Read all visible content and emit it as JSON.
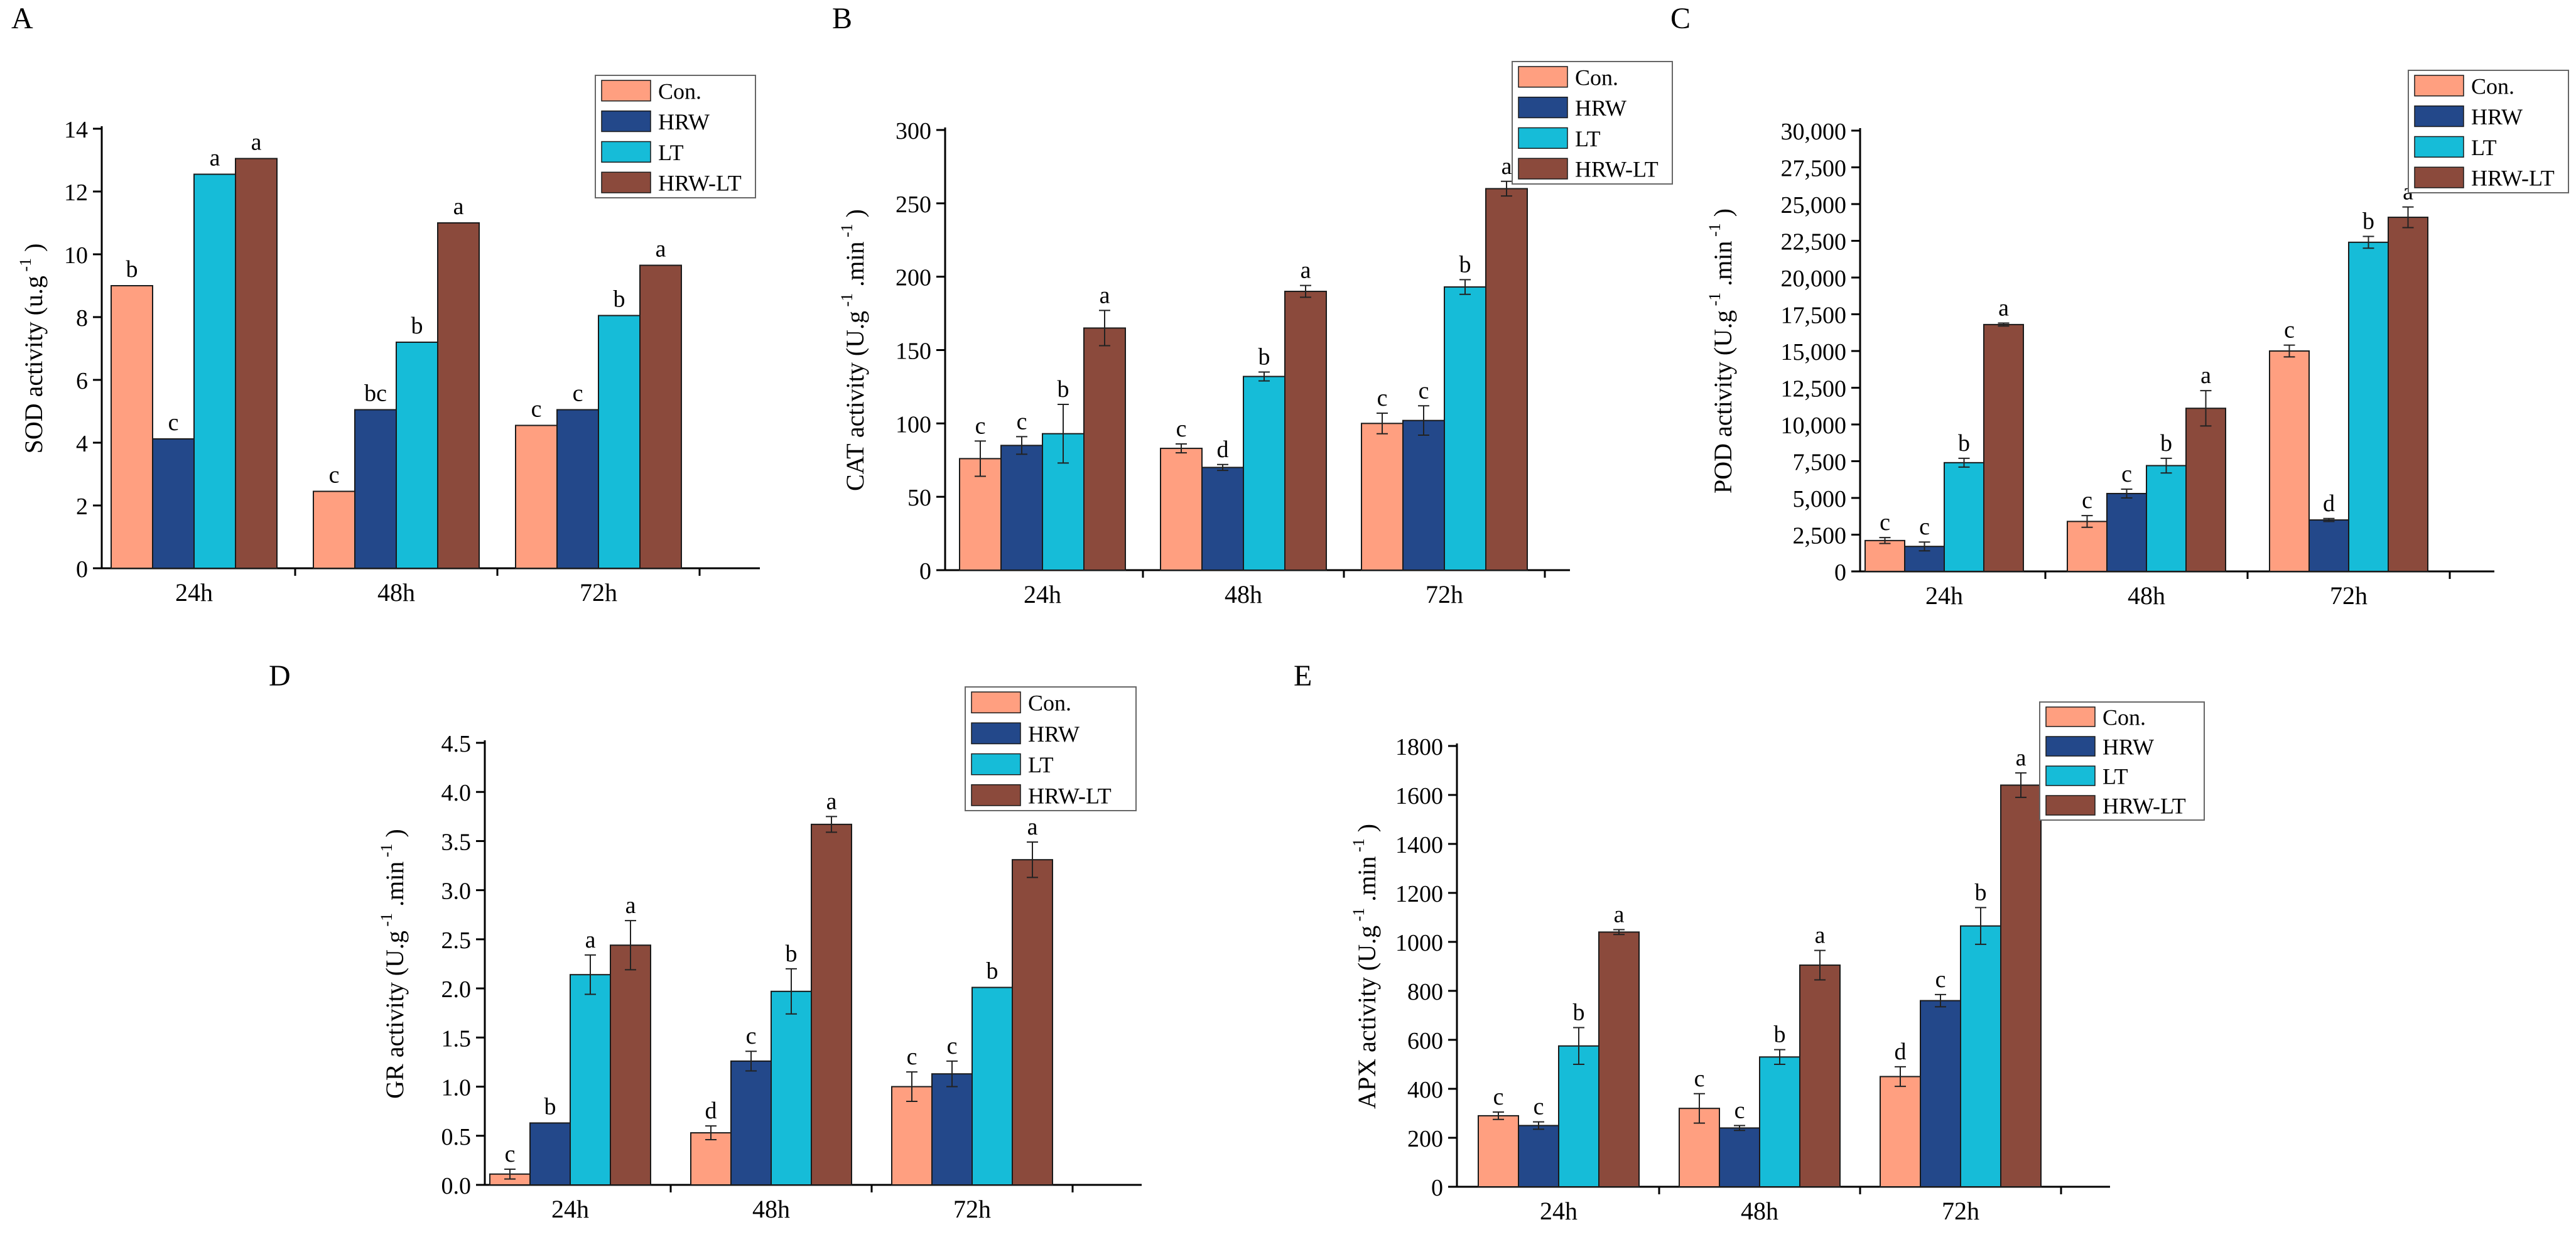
{
  "colors": {
    "Con.": "#ff9f80",
    "HRW": "#23488a",
    "LT": "#16bcd8",
    "HRW-LT": "#8b4a3c",
    "axis": "#000000",
    "error": "#222222"
  },
  "chart_data": [
    {
      "panel": "A",
      "type": "bar",
      "ylabel": "SOD activity (u.g",
      "ylabel_sup": "-1",
      "ylabel_end": ")",
      "ylim": [
        0,
        14
      ],
      "ytick_values": [
        0,
        2,
        4,
        6,
        8,
        10,
        12,
        14
      ],
      "ytick_labels": [
        "0",
        "2",
        "4",
        "6",
        "8",
        "10",
        "12",
        "14"
      ],
      "categories": [
        "24h",
        "48h",
        "72h"
      ],
      "legend_position": "top-right",
      "series": [
        {
          "name": "Con.",
          "values": [
            9.0,
            2.45,
            4.55
          ],
          "errors": [
            0,
            0,
            0
          ],
          "letters": [
            "b",
            "c",
            "c"
          ]
        },
        {
          "name": "HRW",
          "values": [
            4.12,
            5.05,
            5.05
          ],
          "errors": [
            0,
            0,
            0
          ],
          "letters": [
            "c",
            "bc",
            "c"
          ]
        },
        {
          "name": "LT",
          "values": [
            12.55,
            7.2,
            8.05
          ],
          "errors": [
            0,
            0,
            0
          ],
          "letters": [
            "a",
            "b",
            "b"
          ]
        },
        {
          "name": "HRW-LT",
          "values": [
            13.05,
            11.0,
            9.65
          ],
          "errors": [
            0,
            0,
            0
          ],
          "letters": [
            "a",
            "a",
            "a"
          ]
        }
      ]
    },
    {
      "panel": "B",
      "type": "bar",
      "ylabel": "CAT activity (U.g",
      "ylabel_sup": "-1",
      "ylabel_mid": ".min",
      "ylabel_sup2": "-1",
      "ylabel_end": ")",
      "ylim": [
        0,
        300
      ],
      "ytick_values": [
        0,
        50,
        100,
        150,
        200,
        250,
        300
      ],
      "ytick_labels": [
        "0",
        "50",
        "100",
        "150",
        "200",
        "250",
        "300"
      ],
      "categories": [
        "24h",
        "48h",
        "72h"
      ],
      "legend_position": "top-right",
      "series": [
        {
          "name": "Con.",
          "values": [
            76,
            83,
            100
          ],
          "errors": [
            12,
            3,
            7
          ],
          "letters": [
            "c",
            "c",
            "c"
          ]
        },
        {
          "name": "HRW",
          "values": [
            85,
            70,
            102
          ],
          "errors": [
            6,
            2,
            10
          ],
          "letters": [
            "c",
            "d",
            "c"
          ]
        },
        {
          "name": "LT",
          "values": [
            93,
            132,
            193
          ],
          "errors": [
            20,
            3,
            5
          ],
          "letters": [
            "b",
            "b",
            "b"
          ]
        },
        {
          "name": "HRW-LT",
          "values": [
            165,
            190,
            260
          ],
          "errors": [
            12,
            4,
            5
          ],
          "letters": [
            "a",
            "a",
            "a"
          ]
        }
      ]
    },
    {
      "panel": "C",
      "type": "bar",
      "ylabel": "POD activity (U.g",
      "ylabel_sup": "-1",
      "ylabel_mid": ".min",
      "ylabel_sup2": "-1",
      "ylabel_end": ")",
      "ylim": [
        0,
        30000
      ],
      "ytick_values": [
        0,
        2500,
        5000,
        7500,
        10000,
        12500,
        15000,
        17500,
        20000,
        22500,
        25000,
        27500,
        30000
      ],
      "ytick_labels": [
        "0",
        "2,500",
        "5,000",
        "7,500",
        "10,000",
        "12,500",
        "15,000",
        "17,500",
        "20,000",
        "22,500",
        "25,000",
        "27,500",
        "30,000"
      ],
      "categories": [
        "24h",
        "48h",
        "72h"
      ],
      "legend_position": "top-right",
      "series": [
        {
          "name": "Con.",
          "values": [
            2100,
            3400,
            15000
          ],
          "errors": [
            200,
            400,
            400
          ],
          "letters": [
            "c",
            "c",
            "c"
          ]
        },
        {
          "name": "HRW",
          "values": [
            1700,
            5300,
            3500
          ],
          "errors": [
            300,
            300,
            100
          ],
          "letters": [
            "c",
            "c",
            "d"
          ]
        },
        {
          "name": "LT",
          "values": [
            7400,
            7200,
            22400
          ],
          "errors": [
            300,
            500,
            400
          ],
          "letters": [
            "b",
            "b",
            "b"
          ]
        },
        {
          "name": "HRW-LT",
          "values": [
            16800,
            11100,
            24100
          ],
          "errors": [
            100,
            1200,
            700
          ],
          "letters": [
            "a",
            "a",
            "a"
          ]
        }
      ]
    },
    {
      "panel": "D",
      "type": "bar",
      "ylabel": "GR activity (U.g",
      "ylabel_sup": "-1",
      "ylabel_mid": ".min",
      "ylabel_sup2": "-1",
      "ylabel_end": ")",
      "ylim": [
        0,
        4.5
      ],
      "ytick_values": [
        0,
        0.5,
        1.0,
        1.5,
        2.0,
        2.5,
        3.0,
        3.5,
        4.0,
        4.5
      ],
      "ytick_labels": [
        "0.0",
        "0.5",
        "1.0",
        "1.5",
        "2.0",
        "2.5",
        "3.0",
        "3.5",
        "4.0",
        "4.5"
      ],
      "categories": [
        "24h",
        "48h",
        "72h"
      ],
      "legend_position": "top-right",
      "series": [
        {
          "name": "Con.",
          "values": [
            0.11,
            0.53,
            1.0
          ],
          "errors": [
            0.05,
            0.07,
            0.15
          ],
          "letters": [
            "c",
            "d",
            "c"
          ]
        },
        {
          "name": "HRW",
          "values": [
            0.63,
            1.26,
            1.13
          ],
          "errors": [
            0.0,
            0.1,
            0.13
          ],
          "letters": [
            "b",
            "c",
            "c"
          ]
        },
        {
          "name": "LT",
          "values": [
            2.14,
            1.97,
            2.01
          ],
          "errors": [
            0.2,
            0.23,
            0.0
          ],
          "letters": [
            "a",
            "b",
            "b"
          ]
        },
        {
          "name": "HRW-LT",
          "values": [
            2.44,
            3.67,
            3.31
          ],
          "errors": [
            0.25,
            0.08,
            0.18
          ],
          "letters": [
            "a",
            "a",
            "a"
          ]
        }
      ]
    },
    {
      "panel": "E",
      "type": "bar",
      "ylabel": "APX activity (U.g",
      "ylabel_sup": "-1",
      "ylabel_mid": ".min",
      "ylabel_sup2": "-1",
      "ylabel_end": ")",
      "ylim": [
        0,
        1800
      ],
      "ytick_values": [
        0,
        200,
        400,
        600,
        800,
        1000,
        1200,
        1400,
        1600,
        1800
      ],
      "ytick_labels": [
        "0",
        "200",
        "400",
        "600",
        "800",
        "1000",
        "1200",
        "1400",
        "1600",
        "1800"
      ],
      "categories": [
        "24h",
        "48h",
        "72h"
      ],
      "legend_position": "top-left",
      "series": [
        {
          "name": "Con.",
          "values": [
            290,
            320,
            450
          ],
          "errors": [
            15,
            60,
            40
          ],
          "letters": [
            "c",
            "c",
            "d"
          ]
        },
        {
          "name": "HRW",
          "values": [
            250,
            240,
            760
          ],
          "errors": [
            15,
            10,
            25
          ],
          "letters": [
            "c",
            "c",
            "c"
          ]
        },
        {
          "name": "LT",
          "values": [
            575,
            530,
            1065
          ],
          "errors": [
            75,
            30,
            75
          ],
          "letters": [
            "b",
            "b",
            "b"
          ]
        },
        {
          "name": "HRW-LT",
          "values": [
            1040,
            905,
            1640
          ],
          "errors": [
            10,
            60,
            50
          ],
          "letters": [
            "a",
            "a",
            "a"
          ]
        }
      ]
    }
  ]
}
